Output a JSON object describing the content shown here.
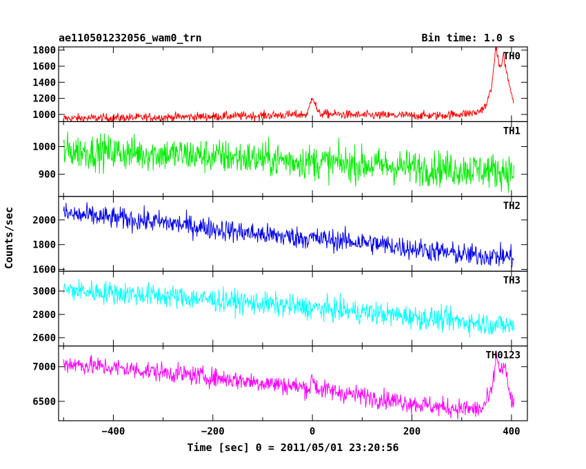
{
  "chart_data": {
    "type": "line",
    "title": "ae110501232056_wam0_trn",
    "subtitle": "Bin time: 1.0 s",
    "xlabel": "Time [sec] 0 = 2011/05/01 23:20:56",
    "ylabel": "Counts/sec",
    "xlim": [
      -510,
      432
    ],
    "x_ticks": [
      -400,
      -200,
      0,
      200,
      400
    ],
    "x_range": [
      -500,
      405
    ],
    "bin": 1.0,
    "grid": false,
    "panels": [
      {
        "name": "TH0",
        "color": "#ff0000",
        "ylim": [
          910,
          1840
        ],
        "yticks": [
          1000,
          1200,
          1400,
          1600,
          1800
        ],
        "keypoints": [
          [
            -500,
            950
          ],
          [
            -300,
            965
          ],
          [
            -100,
            985
          ],
          [
            -10,
            1000
          ],
          [
            0,
            1240
          ],
          [
            12,
            1010
          ],
          [
            100,
            990
          ],
          [
            250,
            985
          ],
          [
            330,
            1020
          ],
          [
            350,
            1110
          ],
          [
            363,
            1450
          ],
          [
            368,
            1840
          ],
          [
            378,
            1560
          ],
          [
            384,
            1750
          ],
          [
            390,
            1520
          ],
          [
            400,
            1260
          ],
          [
            405,
            1110
          ]
        ],
        "noise": 28
      },
      {
        "name": "TH1",
        "color": "#00ee00",
        "ylim": [
          820,
          1090
        ],
        "yticks": [
          900,
          1000
        ],
        "keypoints": [
          [
            -500,
            985
          ],
          [
            -250,
            970
          ],
          [
            0,
            945
          ],
          [
            200,
            925
          ],
          [
            405,
            910
          ]
        ],
        "noise": 32
      },
      {
        "name": "TH2",
        "color": "#0000ee",
        "ylim": [
          1585,
          2190
        ],
        "yticks": [
          1600,
          1800,
          2000
        ],
        "keypoints": [
          [
            -500,
            2050
          ],
          [
            -300,
            1980
          ],
          [
            -100,
            1880
          ],
          [
            100,
            1820
          ],
          [
            300,
            1720
          ],
          [
            405,
            1700
          ]
        ],
        "noise": 45
      },
      {
        "name": "TH3",
        "color": "#00ffff",
        "ylim": [
          2530,
          3170
        ],
        "yticks": [
          2600,
          2800,
          3000
        ],
        "keypoints": [
          [
            -500,
            3010
          ],
          [
            -300,
            2960
          ],
          [
            -100,
            2890
          ],
          [
            100,
            2820
          ],
          [
            300,
            2740
          ],
          [
            405,
            2700
          ]
        ],
        "noise": 50
      },
      {
        "name": "TH0123",
        "color": "#ff00ff",
        "ylim": [
          6220,
          7300
        ],
        "yticks": [
          6500,
          7000
        ],
        "keypoints": [
          [
            -500,
            7050
          ],
          [
            -300,
            6920
          ],
          [
            -100,
            6770
          ],
          [
            -5,
            6690
          ],
          [
            0,
            6850
          ],
          [
            10,
            6680
          ],
          [
            100,
            6580
          ],
          [
            250,
            6420
          ],
          [
            340,
            6380
          ],
          [
            360,
            6620
          ],
          [
            370,
            7170
          ],
          [
            378,
            6920
          ],
          [
            386,
            7020
          ],
          [
            395,
            6640
          ],
          [
            405,
            6420
          ]
        ],
        "noise": 70
      }
    ]
  }
}
